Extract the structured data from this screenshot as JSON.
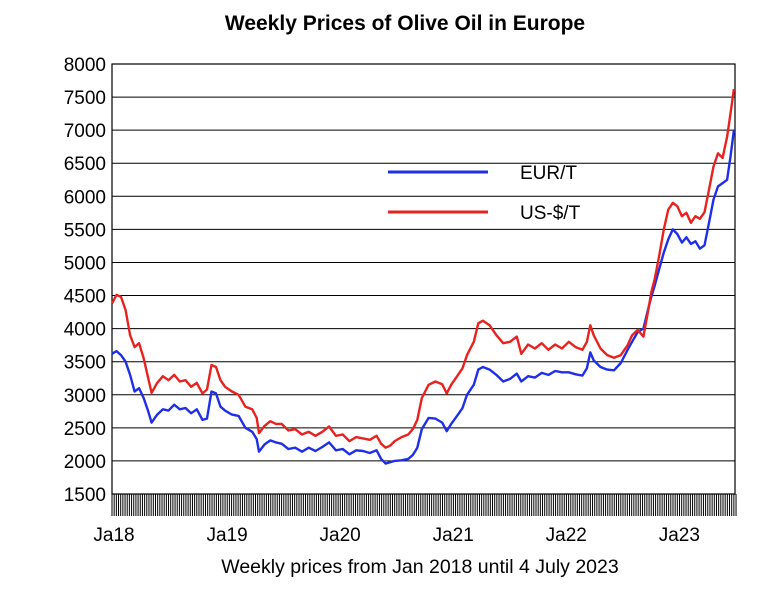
{
  "chart_data": {
    "type": "line",
    "title": "Weekly Prices of Olive Oil in Europe",
    "xlabel": "Weekly prices from Jan 2018 until 4 July 2023",
    "ylabel": "",
    "ylim": [
      1500,
      8000
    ],
    "yticks": [
      1500,
      2000,
      2500,
      3000,
      3500,
      4000,
      4500,
      5000,
      5500,
      6000,
      6500,
      7000,
      7500,
      8000
    ],
    "xlim": [
      2018.0,
      2023.51
    ],
    "xticks": [
      {
        "label": "Ja18",
        "value": 2018.0
      },
      {
        "label": "Ja19",
        "value": 2019.0
      },
      {
        "label": "Ja20",
        "value": 2020.0
      },
      {
        "label": "Ja21",
        "value": 2021.0
      },
      {
        "label": "Ja22",
        "value": 2022.0
      },
      {
        "label": "Ja23",
        "value": 2023.0
      }
    ],
    "grid": "horizontal",
    "legend_position": "upper-middle-right",
    "series": [
      {
        "name": "EUR/T",
        "color": "#1f2fe8",
        "points": [
          [
            2018.0,
            3620
          ],
          [
            2018.04,
            3660
          ],
          [
            2018.08,
            3600
          ],
          [
            2018.12,
            3500
          ],
          [
            2018.16,
            3300
          ],
          [
            2018.2,
            3050
          ],
          [
            2018.24,
            3100
          ],
          [
            2018.28,
            2950
          ],
          [
            2018.32,
            2750
          ],
          [
            2018.35,
            2580
          ],
          [
            2018.4,
            2700
          ],
          [
            2018.45,
            2780
          ],
          [
            2018.5,
            2760
          ],
          [
            2018.55,
            2850
          ],
          [
            2018.6,
            2780
          ],
          [
            2018.65,
            2800
          ],
          [
            2018.7,
            2720
          ],
          [
            2018.75,
            2780
          ],
          [
            2018.8,
            2620
          ],
          [
            2018.84,
            2640
          ],
          [
            2018.88,
            3050
          ],
          [
            2018.92,
            3020
          ],
          [
            2018.96,
            2820
          ],
          [
            2019.0,
            2760
          ],
          [
            2019.06,
            2700
          ],
          [
            2019.12,
            2680
          ],
          [
            2019.18,
            2500
          ],
          [
            2019.24,
            2440
          ],
          [
            2019.28,
            2330
          ],
          [
            2019.3,
            2140
          ],
          [
            2019.35,
            2250
          ],
          [
            2019.4,
            2310
          ],
          [
            2019.45,
            2280
          ],
          [
            2019.5,
            2260
          ],
          [
            2019.56,
            2180
          ],
          [
            2019.62,
            2200
          ],
          [
            2019.68,
            2140
          ],
          [
            2019.74,
            2200
          ],
          [
            2019.8,
            2150
          ],
          [
            2019.86,
            2210
          ],
          [
            2019.92,
            2280
          ],
          [
            2019.98,
            2160
          ],
          [
            2020.04,
            2180
          ],
          [
            2020.1,
            2100
          ],
          [
            2020.16,
            2160
          ],
          [
            2020.22,
            2150
          ],
          [
            2020.28,
            2120
          ],
          [
            2020.34,
            2160
          ],
          [
            2020.38,
            2030
          ],
          [
            2020.42,
            1960
          ],
          [
            2020.46,
            1980
          ],
          [
            2020.5,
            2000
          ],
          [
            2020.56,
            2010
          ],
          [
            2020.62,
            2030
          ],
          [
            2020.66,
            2090
          ],
          [
            2020.7,
            2200
          ],
          [
            2020.74,
            2480
          ],
          [
            2020.8,
            2650
          ],
          [
            2020.86,
            2640
          ],
          [
            2020.92,
            2580
          ],
          [
            2020.96,
            2450
          ],
          [
            2021.0,
            2560
          ],
          [
            2021.06,
            2700
          ],
          [
            2021.1,
            2800
          ],
          [
            2021.14,
            3000
          ],
          [
            2021.2,
            3150
          ],
          [
            2021.24,
            3380
          ],
          [
            2021.28,
            3420
          ],
          [
            2021.34,
            3380
          ],
          [
            2021.4,
            3300
          ],
          [
            2021.46,
            3200
          ],
          [
            2021.52,
            3240
          ],
          [
            2021.58,
            3320
          ],
          [
            2021.62,
            3200
          ],
          [
            2021.68,
            3280
          ],
          [
            2021.74,
            3260
          ],
          [
            2021.8,
            3330
          ],
          [
            2021.86,
            3300
          ],
          [
            2021.92,
            3360
          ],
          [
            2021.98,
            3340
          ],
          [
            2022.04,
            3340
          ],
          [
            2022.1,
            3310
          ],
          [
            2022.16,
            3290
          ],
          [
            2022.2,
            3400
          ],
          [
            2022.23,
            3640
          ],
          [
            2022.26,
            3520
          ],
          [
            2022.32,
            3420
          ],
          [
            2022.38,
            3380
          ],
          [
            2022.44,
            3370
          ],
          [
            2022.5,
            3480
          ],
          [
            2022.56,
            3680
          ],
          [
            2022.6,
            3800
          ],
          [
            2022.65,
            3950
          ],
          [
            2022.7,
            4000
          ],
          [
            2022.74,
            4280
          ],
          [
            2022.77,
            4480
          ],
          [
            2022.8,
            4650
          ],
          [
            2022.84,
            4900
          ],
          [
            2022.88,
            5150
          ],
          [
            2022.92,
            5350
          ],
          [
            2022.96,
            5500
          ],
          [
            2023.0,
            5430
          ],
          [
            2023.04,
            5300
          ],
          [
            2023.08,
            5380
          ],
          [
            2023.12,
            5280
          ],
          [
            2023.16,
            5320
          ],
          [
            2023.2,
            5210
          ],
          [
            2023.24,
            5260
          ],
          [
            2023.28,
            5600
          ],
          [
            2023.32,
            5950
          ],
          [
            2023.36,
            6150
          ],
          [
            2023.4,
            6200
          ],
          [
            2023.44,
            6250
          ],
          [
            2023.47,
            6600
          ],
          [
            2023.5,
            7000
          ]
        ]
      },
      {
        "name": "US-$/T",
        "color": "#e8221f",
        "points": [
          [
            2018.0,
            4380
          ],
          [
            2018.04,
            4510
          ],
          [
            2018.08,
            4480
          ],
          [
            2018.12,
            4280
          ],
          [
            2018.16,
            3900
          ],
          [
            2018.2,
            3720
          ],
          [
            2018.24,
            3780
          ],
          [
            2018.28,
            3550
          ],
          [
            2018.32,
            3250
          ],
          [
            2018.35,
            3030
          ],
          [
            2018.4,
            3180
          ],
          [
            2018.45,
            3280
          ],
          [
            2018.5,
            3220
          ],
          [
            2018.55,
            3300
          ],
          [
            2018.6,
            3200
          ],
          [
            2018.65,
            3220
          ],
          [
            2018.7,
            3120
          ],
          [
            2018.75,
            3180
          ],
          [
            2018.8,
            3020
          ],
          [
            2018.84,
            3080
          ],
          [
            2018.88,
            3450
          ],
          [
            2018.92,
            3420
          ],
          [
            2018.96,
            3220
          ],
          [
            2019.0,
            3120
          ],
          [
            2019.06,
            3050
          ],
          [
            2019.12,
            3000
          ],
          [
            2019.18,
            2820
          ],
          [
            2019.24,
            2780
          ],
          [
            2019.28,
            2650
          ],
          [
            2019.3,
            2420
          ],
          [
            2019.35,
            2530
          ],
          [
            2019.4,
            2600
          ],
          [
            2019.45,
            2560
          ],
          [
            2019.5,
            2560
          ],
          [
            2019.56,
            2460
          ],
          [
            2019.62,
            2480
          ],
          [
            2019.68,
            2400
          ],
          [
            2019.74,
            2440
          ],
          [
            2019.8,
            2380
          ],
          [
            2019.86,
            2440
          ],
          [
            2019.92,
            2520
          ],
          [
            2019.98,
            2380
          ],
          [
            2020.04,
            2400
          ],
          [
            2020.1,
            2300
          ],
          [
            2020.16,
            2360
          ],
          [
            2020.22,
            2340
          ],
          [
            2020.28,
            2320
          ],
          [
            2020.34,
            2380
          ],
          [
            2020.38,
            2260
          ],
          [
            2020.42,
            2200
          ],
          [
            2020.46,
            2230
          ],
          [
            2020.5,
            2300
          ],
          [
            2020.56,
            2360
          ],
          [
            2020.62,
            2400
          ],
          [
            2020.66,
            2480
          ],
          [
            2020.7,
            2620
          ],
          [
            2020.74,
            2950
          ],
          [
            2020.8,
            3150
          ],
          [
            2020.86,
            3200
          ],
          [
            2020.92,
            3160
          ],
          [
            2020.96,
            3020
          ],
          [
            2021.0,
            3150
          ],
          [
            2021.06,
            3300
          ],
          [
            2021.1,
            3400
          ],
          [
            2021.14,
            3600
          ],
          [
            2021.2,
            3800
          ],
          [
            2021.24,
            4080
          ],
          [
            2021.28,
            4120
          ],
          [
            2021.34,
            4050
          ],
          [
            2021.4,
            3900
          ],
          [
            2021.46,
            3780
          ],
          [
            2021.52,
            3800
          ],
          [
            2021.58,
            3880
          ],
          [
            2021.62,
            3620
          ],
          [
            2021.68,
            3760
          ],
          [
            2021.74,
            3700
          ],
          [
            2021.8,
            3780
          ],
          [
            2021.86,
            3680
          ],
          [
            2021.92,
            3760
          ],
          [
            2021.98,
            3700
          ],
          [
            2022.04,
            3800
          ],
          [
            2022.1,
            3720
          ],
          [
            2022.16,
            3680
          ],
          [
            2022.2,
            3800
          ],
          [
            2022.23,
            4050
          ],
          [
            2022.26,
            3900
          ],
          [
            2022.32,
            3700
          ],
          [
            2022.38,
            3600
          ],
          [
            2022.44,
            3560
          ],
          [
            2022.5,
            3600
          ],
          [
            2022.56,
            3750
          ],
          [
            2022.6,
            3900
          ],
          [
            2022.65,
            3980
          ],
          [
            2022.7,
            3880
          ],
          [
            2022.74,
            4250
          ],
          [
            2022.77,
            4550
          ],
          [
            2022.8,
            4750
          ],
          [
            2022.84,
            5100
          ],
          [
            2022.88,
            5500
          ],
          [
            2022.92,
            5800
          ],
          [
            2022.96,
            5900
          ],
          [
            2023.0,
            5850
          ],
          [
            2023.04,
            5700
          ],
          [
            2023.08,
            5750
          ],
          [
            2023.12,
            5600
          ],
          [
            2023.16,
            5700
          ],
          [
            2023.2,
            5660
          ],
          [
            2023.24,
            5760
          ],
          [
            2023.28,
            6100
          ],
          [
            2023.32,
            6450
          ],
          [
            2023.36,
            6650
          ],
          [
            2023.4,
            6580
          ],
          [
            2023.44,
            6900
          ],
          [
            2023.47,
            7250
          ],
          [
            2023.5,
            7620
          ]
        ]
      }
    ]
  }
}
